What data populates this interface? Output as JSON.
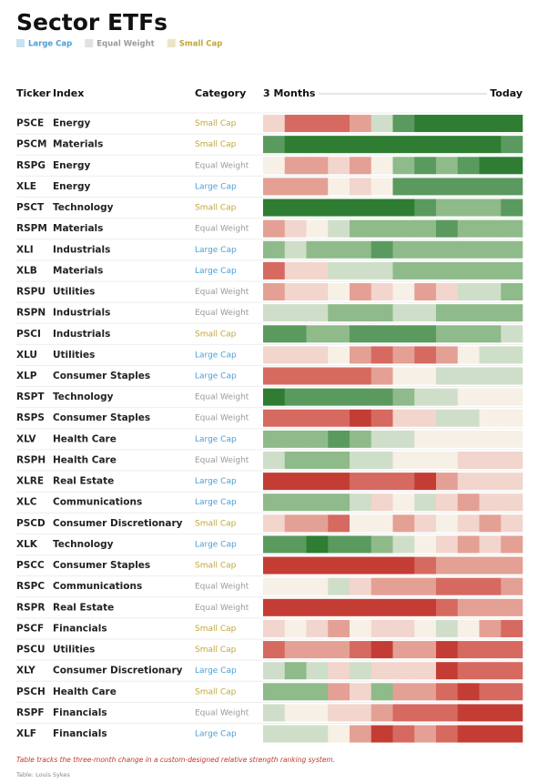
{
  "header": {
    "title": "Sector ETFs",
    "legend": [
      {
        "label": "Large Cap",
        "color": "#4a9fd5"
      },
      {
        "label": "Equal Weight",
        "color": "#9a9a9a"
      },
      {
        "label": "Small Cap",
        "color": "#c2a63a"
      }
    ]
  },
  "table": {
    "columns": [
      "Ticker",
      "Index",
      "Category",
      "3 Months",
      "Today"
    ],
    "rows": [
      {
        "ticker": "PSCE",
        "index": "Energy",
        "category": "Small Cap",
        "cells": [
          "#f2d5cc",
          "#d66a60",
          "#d66a60",
          "#d66a60",
          "#e4a094",
          "#cfdec8",
          "#5a9a5e",
          "#2e7d32",
          "#2e7d32",
          "#2e7d32",
          "#2e7d32",
          "#2e7d32"
        ]
      },
      {
        "ticker": "PSCM",
        "index": "Materials",
        "category": "Small Cap",
        "cells": [
          "#5a9a5e",
          "#2e7d32",
          "#2e7d32",
          "#2e7d32",
          "#2e7d32",
          "#2e7d32",
          "#2e7d32",
          "#2e7d32",
          "#2e7d32",
          "#2e7d32",
          "#2e7d32",
          "#5a9a5e"
        ]
      },
      {
        "ticker": "RSPG",
        "index": "Energy",
        "category": "Equal Weight",
        "cells": [
          "#f7f0e6",
          "#e4a094",
          "#e4a094",
          "#f2d5cc",
          "#e4a094",
          "#f7f0e6",
          "#8fba8a",
          "#5a9a5e",
          "#8fba8a",
          "#5a9a5e",
          "#2e7d32",
          "#2e7d32"
        ]
      },
      {
        "ticker": "XLE",
        "index": "Energy",
        "category": "Large Cap",
        "cells": [
          "#e4a094",
          "#e4a094",
          "#e4a094",
          "#f7f0e6",
          "#f2d5cc",
          "#f7f0e6",
          "#5a9a5e",
          "#5a9a5e",
          "#5a9a5e",
          "#5a9a5e",
          "#5a9a5e",
          "#5a9a5e"
        ]
      },
      {
        "ticker": "PSCT",
        "index": "Technology",
        "category": "Small Cap",
        "cells": [
          "#2e7d32",
          "#2e7d32",
          "#2e7d32",
          "#2e7d32",
          "#2e7d32",
          "#2e7d32",
          "#2e7d32",
          "#5a9a5e",
          "#8fba8a",
          "#8fba8a",
          "#8fba8a",
          "#5a9a5e"
        ]
      },
      {
        "ticker": "RSPM",
        "index": "Materials",
        "category": "Equal Weight",
        "cells": [
          "#e4a094",
          "#f2d5cc",
          "#f7f0e6",
          "#cfdec8",
          "#8fba8a",
          "#8fba8a",
          "#8fba8a",
          "#8fba8a",
          "#5a9a5e",
          "#8fba8a",
          "#8fba8a",
          "#8fba8a"
        ]
      },
      {
        "ticker": "XLI",
        "index": "Industrials",
        "category": "Large Cap",
        "cells": [
          "#8fba8a",
          "#cfdec8",
          "#8fba8a",
          "#8fba8a",
          "#8fba8a",
          "#5a9a5e",
          "#8fba8a",
          "#8fba8a",
          "#8fba8a",
          "#8fba8a",
          "#8fba8a",
          "#8fba8a"
        ]
      },
      {
        "ticker": "XLB",
        "index": "Materials",
        "category": "Large Cap",
        "cells": [
          "#d66a60",
          "#f2d5cc",
          "#f2d5cc",
          "#cfdec8",
          "#cfdec8",
          "#cfdec8",
          "#8fba8a",
          "#8fba8a",
          "#8fba8a",
          "#8fba8a",
          "#8fba8a",
          "#8fba8a"
        ]
      },
      {
        "ticker": "RSPU",
        "index": "Utilities",
        "category": "Equal Weight",
        "cells": [
          "#e4a094",
          "#f2d5cc",
          "#f2d5cc",
          "#f7f0e6",
          "#e4a094",
          "#f2d5cc",
          "#f7f0e6",
          "#e4a094",
          "#f2d5cc",
          "#cfdec8",
          "#cfdec8",
          "#8fba8a"
        ]
      },
      {
        "ticker": "RSPN",
        "index": "Industrials",
        "category": "Equal Weight",
        "cells": [
          "#cfdec8",
          "#cfdec8",
          "#cfdec8",
          "#8fba8a",
          "#8fba8a",
          "#8fba8a",
          "#cfdec8",
          "#cfdec8",
          "#8fba8a",
          "#8fba8a",
          "#8fba8a",
          "#8fba8a"
        ]
      },
      {
        "ticker": "PSCI",
        "index": "Industrials",
        "category": "Small Cap",
        "cells": [
          "#5a9a5e",
          "#5a9a5e",
          "#8fba8a",
          "#8fba8a",
          "#5a9a5e",
          "#5a9a5e",
          "#5a9a5e",
          "#5a9a5e",
          "#8fba8a",
          "#8fba8a",
          "#8fba8a",
          "#cfdec8"
        ]
      },
      {
        "ticker": "XLU",
        "index": "Utilities",
        "category": "Large Cap",
        "cells": [
          "#f2d5cc",
          "#f2d5cc",
          "#f2d5cc",
          "#f7f0e6",
          "#e4a094",
          "#d66a60",
          "#e4a094",
          "#d66a60",
          "#e4a094",
          "#f7f0e6",
          "#cfdec8",
          "#cfdec8"
        ]
      },
      {
        "ticker": "XLP",
        "index": "Consumer Staples",
        "category": "Large Cap",
        "cells": [
          "#d66a60",
          "#d66a60",
          "#d66a60",
          "#d66a60",
          "#d66a60",
          "#e4a094",
          "#f7f0e6",
          "#f7f0e6",
          "#cfdec8",
          "#cfdec8",
          "#cfdec8",
          "#cfdec8"
        ]
      },
      {
        "ticker": "RSPT",
        "index": "Technology",
        "category": "Equal Weight",
        "cells": [
          "#2e7d32",
          "#5a9a5e",
          "#5a9a5e",
          "#5a9a5e",
          "#5a9a5e",
          "#5a9a5e",
          "#8fba8a",
          "#cfdec8",
          "#cfdec8",
          "#f7f0e6",
          "#f7f0e6",
          "#f7f0e6"
        ]
      },
      {
        "ticker": "RSPS",
        "index": "Consumer Staples",
        "category": "Equal Weight",
        "cells": [
          "#d66a60",
          "#d66a60",
          "#d66a60",
          "#d66a60",
          "#c43d35",
          "#d66a60",
          "#f2d5cc",
          "#f2d5cc",
          "#cfdec8",
          "#cfdec8",
          "#f7f0e6",
          "#f7f0e6"
        ]
      },
      {
        "ticker": "XLV",
        "index": "Health Care",
        "category": "Large Cap",
        "cells": [
          "#8fba8a",
          "#8fba8a",
          "#8fba8a",
          "#5a9a5e",
          "#8fba8a",
          "#cfdec8",
          "#cfdec8",
          "#f7f0e6",
          "#f7f0e6",
          "#f7f0e6",
          "#f7f0e6",
          "#f7f0e6"
        ]
      },
      {
        "ticker": "RSPH",
        "index": "Health Care",
        "category": "Equal Weight",
        "cells": [
          "#cfdec8",
          "#8fba8a",
          "#8fba8a",
          "#8fba8a",
          "#cfdec8",
          "#cfdec8",
          "#f7f0e6",
          "#f7f0e6",
          "#f7f0e6",
          "#f2d5cc",
          "#f2d5cc",
          "#f2d5cc"
        ]
      },
      {
        "ticker": "XLRE",
        "index": "Real Estate",
        "category": "Large Cap",
        "cells": [
          "#c43d35",
          "#c43d35",
          "#c43d35",
          "#c43d35",
          "#d66a60",
          "#d66a60",
          "#d66a60",
          "#c43d35",
          "#e4a094",
          "#f2d5cc",
          "#f2d5cc",
          "#f2d5cc"
        ]
      },
      {
        "ticker": "XLC",
        "index": "Communications",
        "category": "Large Cap",
        "cells": [
          "#8fba8a",
          "#8fba8a",
          "#8fba8a",
          "#8fba8a",
          "#cfdec8",
          "#f2d5cc",
          "#f7f0e6",
          "#cfdec8",
          "#f2d5cc",
          "#e4a094",
          "#f2d5cc",
          "#f2d5cc"
        ]
      },
      {
        "ticker": "PSCD",
        "index": "Consumer Discretionary",
        "category": "Small Cap",
        "cells": [
          "#f2d5cc",
          "#e4a094",
          "#e4a094",
          "#d66a60",
          "#f7f0e6",
          "#f7f0e6",
          "#e4a094",
          "#f2d5cc",
          "#f7f0e6",
          "#f2d5cc",
          "#e4a094",
          "#f2d5cc"
        ]
      },
      {
        "ticker": "XLK",
        "index": "Technology",
        "category": "Large Cap",
        "cells": [
          "#5a9a5e",
          "#5a9a5e",
          "#2e7d32",
          "#5a9a5e",
          "#5a9a5e",
          "#8fba8a",
          "#cfdec8",
          "#f7f0e6",
          "#f2d5cc",
          "#e4a094",
          "#f2d5cc",
          "#e4a094"
        ]
      },
      {
        "ticker": "PSCC",
        "index": "Consumer Staples",
        "category": "Small Cap",
        "cells": [
          "#c43d35",
          "#c43d35",
          "#c43d35",
          "#c43d35",
          "#c43d35",
          "#c43d35",
          "#c43d35",
          "#d66a60",
          "#e4a094",
          "#e4a094",
          "#e4a094",
          "#e4a094"
        ]
      },
      {
        "ticker": "RSPC",
        "index": "Communications",
        "category": "Equal Weight",
        "cells": [
          "#f7f0e6",
          "#f7f0e6",
          "#f7f0e6",
          "#cfdec8",
          "#f2d5cc",
          "#e4a094",
          "#e4a094",
          "#e4a094",
          "#d66a60",
          "#d66a60",
          "#d66a60",
          "#e4a094"
        ]
      },
      {
        "ticker": "RSPR",
        "index": "Real Estate",
        "category": "Equal Weight",
        "cells": [
          "#c43d35",
          "#c43d35",
          "#c43d35",
          "#c43d35",
          "#c43d35",
          "#c43d35",
          "#c43d35",
          "#c43d35",
          "#d66a60",
          "#e4a094",
          "#e4a094",
          "#e4a094"
        ]
      },
      {
        "ticker": "PSCF",
        "index": "Financials",
        "category": "Small Cap",
        "cells": [
          "#f2d5cc",
          "#f7f0e6",
          "#f2d5cc",
          "#e4a094",
          "#f7f0e6",
          "#f2d5cc",
          "#f2d5cc",
          "#f7f0e6",
          "#cfdec8",
          "#f7f0e6",
          "#e4a094",
          "#d66a60"
        ]
      },
      {
        "ticker": "PSCU",
        "index": "Utilities",
        "category": "Small Cap",
        "cells": [
          "#d66a60",
          "#e4a094",
          "#e4a094",
          "#e4a094",
          "#d66a60",
          "#c43d35",
          "#e4a094",
          "#e4a094",
          "#c43d35",
          "#d66a60",
          "#d66a60",
          "#d66a60"
        ]
      },
      {
        "ticker": "XLY",
        "index": "Consumer Discretionary",
        "category": "Large Cap",
        "cells": [
          "#cfdec8",
          "#8fba8a",
          "#cfdec8",
          "#f2d5cc",
          "#cfdec8",
          "#f2d5cc",
          "#f2d5cc",
          "#f2d5cc",
          "#c43d35",
          "#d66a60",
          "#d66a60",
          "#d66a60"
        ]
      },
      {
        "ticker": "PSCH",
        "index": "Health Care",
        "category": "Small Cap",
        "cells": [
          "#8fba8a",
          "#8fba8a",
          "#8fba8a",
          "#e4a094",
          "#f2d5cc",
          "#8fba8a",
          "#e4a094",
          "#e4a094",
          "#d66a60",
          "#c43d35",
          "#d66a60",
          "#d66a60"
        ]
      },
      {
        "ticker": "RSPF",
        "index": "Financials",
        "category": "Equal Weight",
        "cells": [
          "#cfdec8",
          "#f7f0e6",
          "#f7f0e6",
          "#f2d5cc",
          "#f2d5cc",
          "#e4a094",
          "#d66a60",
          "#d66a60",
          "#d66a60",
          "#c43d35",
          "#c43d35",
          "#c43d35"
        ]
      },
      {
        "ticker": "XLF",
        "index": "Financials",
        "category": "Large Cap",
        "cells": [
          "#cfdec8",
          "#cfdec8",
          "#cfdec8",
          "#f7f0e6",
          "#e4a094",
          "#c43d35",
          "#d66a60",
          "#e4a094",
          "#d66a60",
          "#c43d35",
          "#c43d35",
          "#c43d35"
        ]
      }
    ]
  },
  "footer": {
    "note": "Table tracks the three-month change in a custom-designed relative strength ranking system.",
    "source": "Table: Louis Sykes"
  }
}
